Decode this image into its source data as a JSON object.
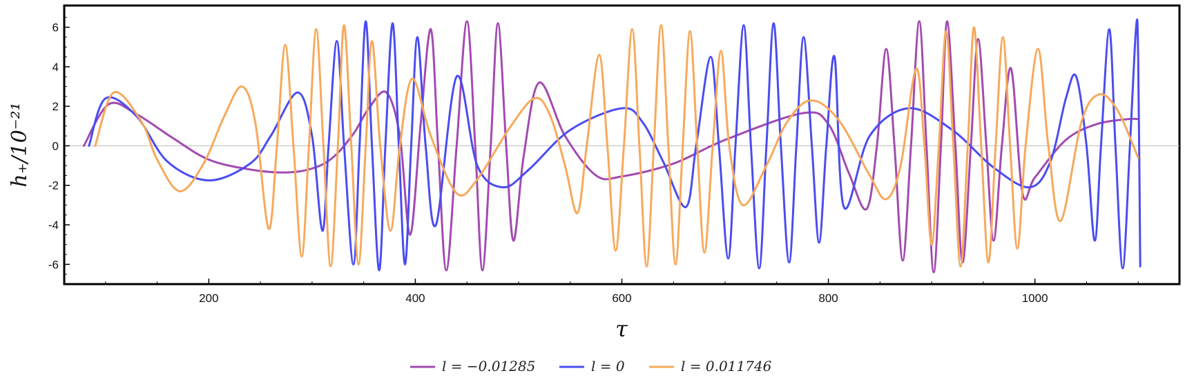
{
  "chart_data": {
    "type": "line",
    "xlabel": "τ",
    "ylabel": "h₊/10⁻²¹",
    "xlim": [
      60,
      1140
    ],
    "ylim": [
      -7,
      7.1
    ],
    "xticks": [
      200,
      400,
      600,
      800,
      1000
    ],
    "yticks": [
      -6,
      -4,
      -2,
      0,
      2,
      4,
      6
    ],
    "grid": false,
    "zero_line": true,
    "legend_position": "bottom",
    "series": [
      {
        "name": "l = −0.01285",
        "color": "#a24ab0",
        "x_start": 79,
        "values": [
          [
            79,
            0
          ],
          [
            103,
            2.1
          ],
          [
            130,
            1.6
          ],
          [
            165,
            0.4
          ],
          [
            200,
            -0.7
          ],
          [
            240,
            -1.2
          ],
          [
            275,
            -1.35
          ],
          [
            300,
            -1.15
          ],
          [
            320,
            -0.6
          ],
          [
            340,
            0.6
          ],
          [
            355,
            1.9
          ],
          [
            372,
            2.7
          ],
          [
            385,
            0.5
          ],
          [
            395,
            -4.5
          ],
          [
            405,
            1.0
          ],
          [
            415,
            5.9
          ],
          [
            422,
            0.0
          ],
          [
            430,
            -6.3
          ],
          [
            440,
            0.0
          ],
          [
            450,
            6.3
          ],
          [
            458,
            0.0
          ],
          [
            465,
            -6.3
          ],
          [
            473,
            0.0
          ],
          [
            480,
            6.2
          ],
          [
            488,
            0.0
          ],
          [
            495,
            -4.8
          ],
          [
            505,
            -0.5
          ],
          [
            520,
            3.2
          ],
          [
            545,
            0.5
          ],
          [
            575,
            -1.5
          ],
          [
            600,
            -1.55
          ],
          [
            650,
            -0.9
          ],
          [
            700,
            0.3
          ],
          [
            775,
            1.65
          ],
          [
            800,
            1.1
          ],
          [
            820,
            -1.4
          ],
          [
            837,
            -3.2
          ],
          [
            847,
            0.0
          ],
          [
            856,
            4.9
          ],
          [
            864,
            0.0
          ],
          [
            872,
            -5.8
          ],
          [
            880,
            0.0
          ],
          [
            888,
            6.3
          ],
          [
            895,
            0.0
          ],
          [
            902,
            -6.4
          ],
          [
            909,
            0.0
          ],
          [
            915,
            6.3
          ],
          [
            923,
            0.0
          ],
          [
            930,
            -5.9
          ],
          [
            938,
            0.0
          ],
          [
            945,
            5.4
          ],
          [
            953,
            0.0
          ],
          [
            960,
            -4.8
          ],
          [
            968,
            0.0
          ],
          [
            977,
            3.9
          ],
          [
            988,
            -2.4
          ],
          [
            1000,
            -1.6
          ],
          [
            1030,
            0.3
          ],
          [
            1060,
            1.1
          ],
          [
            1090,
            1.35
          ],
          [
            1100,
            1.35
          ]
        ]
      },
      {
        "name": "l = 0",
        "color": "#4a4cf0",
        "x_start": 84,
        "values": [
          [
            84,
            0
          ],
          [
            100,
            2.4
          ],
          [
            130,
            1.5
          ],
          [
            160,
            -0.8
          ],
          [
            200,
            -1.75
          ],
          [
            240,
            -0.9
          ],
          [
            260,
            0.5
          ],
          [
            286,
            2.7
          ],
          [
            300,
            0.5
          ],
          [
            310,
            -4.3
          ],
          [
            316,
            0.0
          ],
          [
            324,
            5.3
          ],
          [
            331,
            0.0
          ],
          [
            340,
            -6.0
          ],
          [
            346,
            0.0
          ],
          [
            352,
            6.3
          ],
          [
            358,
            0.0
          ],
          [
            365,
            -6.3
          ],
          [
            371,
            0.0
          ],
          [
            378,
            6.2
          ],
          [
            384,
            0.0
          ],
          [
            390,
            -6.0
          ],
          [
            396,
            0.0
          ],
          [
            402,
            5.5
          ],
          [
            410,
            0.0
          ],
          [
            420,
            -4.0
          ],
          [
            440,
            3.5
          ],
          [
            460,
            -1.0
          ],
          [
            485,
            -2.1
          ],
          [
            510,
            -1.2
          ],
          [
            550,
            0.8
          ],
          [
            600,
            1.9
          ],
          [
            620,
            1.2
          ],
          [
            640,
            -0.8
          ],
          [
            662,
            -3.1
          ],
          [
            672,
            0.0
          ],
          [
            686,
            4.5
          ],
          [
            694,
            0.0
          ],
          [
            703,
            -5.7
          ],
          [
            710,
            0.0
          ],
          [
            718,
            6.1
          ],
          [
            725,
            0.0
          ],
          [
            733,
            -6.2
          ],
          [
            740,
            0.0
          ],
          [
            747,
            6.2
          ],
          [
            754,
            0.0
          ],
          [
            762,
            -5.9
          ],
          [
            769,
            0.0
          ],
          [
            776,
            5.5
          ],
          [
            784,
            0.0
          ],
          [
            791,
            -4.9
          ],
          [
            798,
            0.0
          ],
          [
            806,
            4.5
          ],
          [
            815,
            -3.1
          ],
          [
            840,
            0.5
          ],
          [
            878,
            1.9
          ],
          [
            920,
            0.8
          ],
          [
            960,
            -1.1
          ],
          [
            995,
            -2.1
          ],
          [
            1015,
            -0.8
          ],
          [
            1030,
            2.4
          ],
          [
            1040,
            3.5
          ],
          [
            1050,
            0.0
          ],
          [
            1058,
            -4.8
          ],
          [
            1064,
            0.0
          ],
          [
            1072,
            5.9
          ],
          [
            1078,
            0.0
          ],
          [
            1085,
            -6.2
          ],
          [
            1092,
            0.0
          ],
          [
            1098,
            6.0
          ],
          [
            1100,
            4.5
          ],
          [
            1102,
            -6.1
          ]
        ]
      },
      {
        "name": "l = 0.011746",
        "color": "#f6a95b",
        "x_start": 90,
        "values": [
          [
            90,
            0
          ],
          [
            108,
            2.7
          ],
          [
            135,
            1.2
          ],
          [
            150,
            -0.7
          ],
          [
            172,
            -2.3
          ],
          [
            195,
            -0.9
          ],
          [
            215,
            1.5
          ],
          [
            232,
            3.0
          ],
          [
            245,
            1.2
          ],
          [
            258,
            -4.2
          ],
          [
            266,
            0.0
          ],
          [
            274,
            5.1
          ],
          [
            282,
            0.0
          ],
          [
            290,
            -5.6
          ],
          [
            297,
            0.0
          ],
          [
            304,
            5.9
          ],
          [
            311,
            0.0
          ],
          [
            318,
            -6.1
          ],
          [
            325,
            0.0
          ],
          [
            331,
            6.1
          ],
          [
            338,
            0.0
          ],
          [
            345,
            -6.0
          ],
          [
            352,
            0.0
          ],
          [
            358,
            5.3
          ],
          [
            366,
            0.0
          ],
          [
            376,
            -4.3
          ],
          [
            385,
            0.0
          ],
          [
            397,
            3.4
          ],
          [
            415,
            0.5
          ],
          [
            440,
            -2.4
          ],
          [
            460,
            -1.7
          ],
          [
            490,
            0.8
          ],
          [
            515,
            2.4
          ],
          [
            530,
            1.6
          ],
          [
            545,
            -1.0
          ],
          [
            557,
            -3.4
          ],
          [
            566,
            0.0
          ],
          [
            578,
            4.6
          ],
          [
            586,
            0.0
          ],
          [
            594,
            -5.3
          ],
          [
            602,
            0.0
          ],
          [
            610,
            5.9
          ],
          [
            617,
            0.0
          ],
          [
            624,
            -6.1
          ],
          [
            631,
            0.0
          ],
          [
            638,
            6.1
          ],
          [
            645,
            0.0
          ],
          [
            652,
            -6.0
          ],
          [
            659,
            0.0
          ],
          [
            666,
            5.8
          ],
          [
            673,
            0.0
          ],
          [
            680,
            -5.4
          ],
          [
            688,
            0.0
          ],
          [
            696,
            4.8
          ],
          [
            704,
            0.0
          ],
          [
            717,
            -3.0
          ],
          [
            740,
            -1.0
          ],
          [
            760,
            1.2
          ],
          [
            783,
            2.3
          ],
          [
            810,
            1.3
          ],
          [
            840,
            -1.5
          ],
          [
            856,
            -2.7
          ],
          [
            870,
            -1.0
          ],
          [
            885,
            3.9
          ],
          [
            893,
            0.0
          ],
          [
            900,
            -5.0
          ],
          [
            907,
            0.0
          ],
          [
            914,
            5.8
          ],
          [
            921,
            0.0
          ],
          [
            928,
            -6.1
          ],
          [
            935,
            0.0
          ],
          [
            941,
            6.0
          ],
          [
            948,
            0.0
          ],
          [
            955,
            -5.9
          ],
          [
            962,
            0.0
          ],
          [
            969,
            5.5
          ],
          [
            976,
            0.0
          ],
          [
            983,
            -5.2
          ],
          [
            991,
            0.0
          ],
          [
            1003,
            4.9
          ],
          [
            1013,
            0.0
          ],
          [
            1025,
            -3.8
          ],
          [
            1045,
            1.2
          ],
          [
            1062,
            2.6
          ],
          [
            1080,
            1.8
          ],
          [
            1100,
            -0.6
          ]
        ]
      }
    ]
  }
}
